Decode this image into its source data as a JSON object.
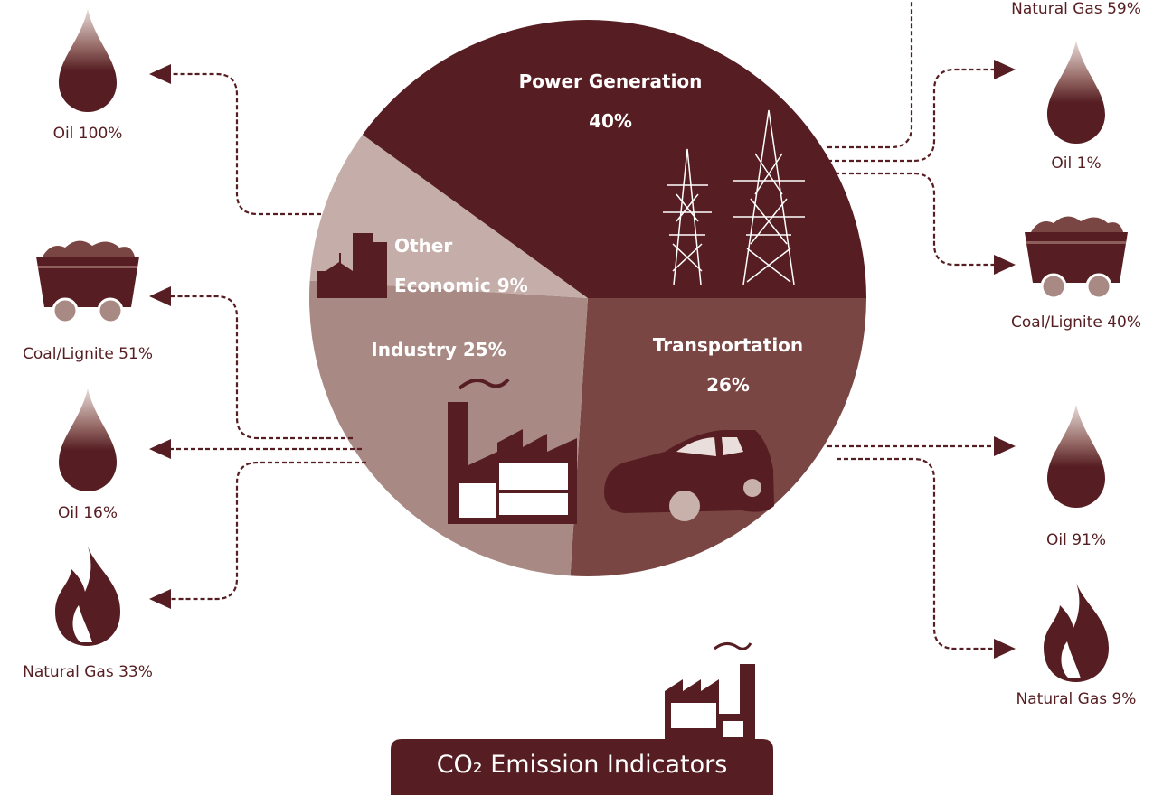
{
  "chart_data": {
    "type": "pie",
    "title": "CO₂ Emission Indicators",
    "categories": [
      "Transportation",
      "Industry",
      "Other Economic",
      "Power Generation"
    ],
    "values": [
      26,
      25,
      9,
      40
    ],
    "value_labels": [
      "26%",
      "25%",
      "9%",
      "40%"
    ],
    "colors": [
      "#7a4643",
      "#a88983",
      "#c5aea9",
      "#561e22"
    ],
    "annotations": [
      {
        "text": "Oil 100%",
        "icon": "drop"
      },
      {
        "text": "Coal/Lignite 51%",
        "icon": "cart"
      },
      {
        "text": "Oil 16%",
        "icon": "drop"
      },
      {
        "text": "Natural Gas 33%",
        "icon": "flame"
      },
      {
        "text": "Natural Gas 59%"
      },
      {
        "text": "Oil 1%",
        "icon": "drop"
      },
      {
        "text": "Coal/Lignite 40%",
        "icon": "cart"
      },
      {
        "text": "Oil 91%",
        "icon": "drop"
      },
      {
        "text": "Natural Gas 9%",
        "icon": "flame"
      }
    ]
  }
}
